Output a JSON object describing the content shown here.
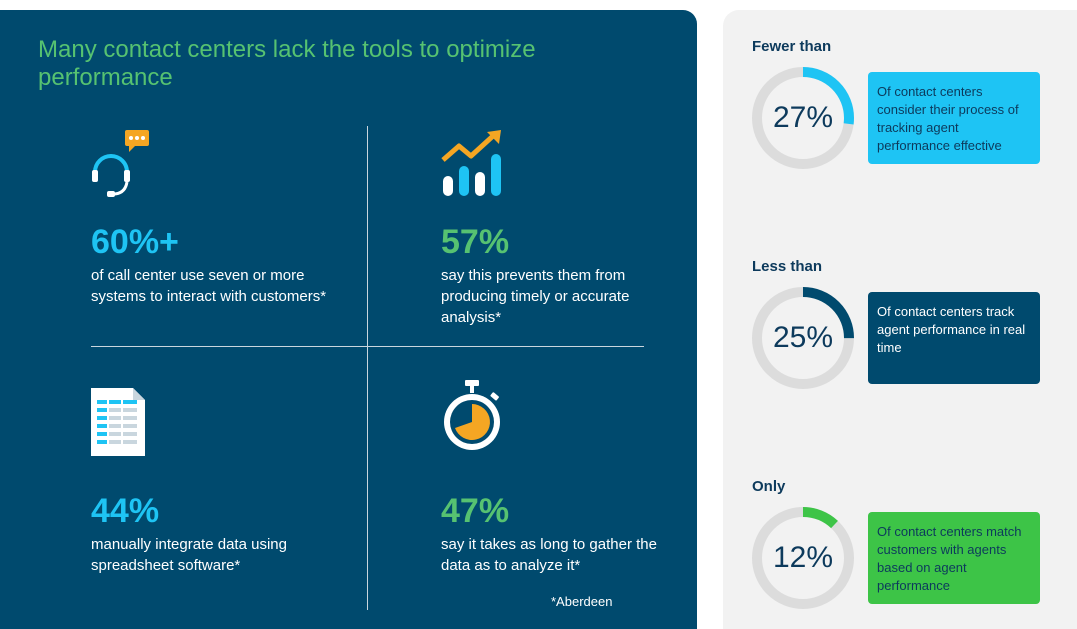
{
  "headline": "Many contact centers lack the tools to optimize performance",
  "stats": [
    {
      "value": "60%+",
      "text": "of call center use seven or more systems to interact with customers*",
      "icon": "headset-chat-icon"
    },
    {
      "value": "57%",
      "text": "say this prevents them from producing timely or accurate  analysis*",
      "icon": "bar-chart-trend-icon"
    },
    {
      "value": "44%",
      "text": "manually integrate data using spreadsheet software*",
      "icon": "spreadsheet-icon"
    },
    {
      "value": "47%",
      "text": "say it takes as long to gather the data as to analyze it*",
      "icon": "stopwatch-icon"
    }
  ],
  "footnote": "*Aberdeen",
  "facts": [
    {
      "qualifier": "Fewer than",
      "percent": "27%",
      "value": 27,
      "text": "Of contact centers consider their process of tracking agent performance effective",
      "color": "#1ec4f4"
    },
    {
      "qualifier": "Less than",
      "percent": "25%",
      "value": 25,
      "text": "Of contact centers track agent performance in real time",
      "color": "#004a6e"
    },
    {
      "qualifier": "Only",
      "percent": "12%",
      "value": 12,
      "text": "Of contact centers match customers with agents based on agent performance",
      "color": "#3dc447"
    }
  ],
  "colors": {
    "navy": "#004a6e",
    "cyan": "#1ec4f4",
    "green": "#56c271",
    "orange": "#f5a623",
    "ring": "#dcdcdc"
  }
}
